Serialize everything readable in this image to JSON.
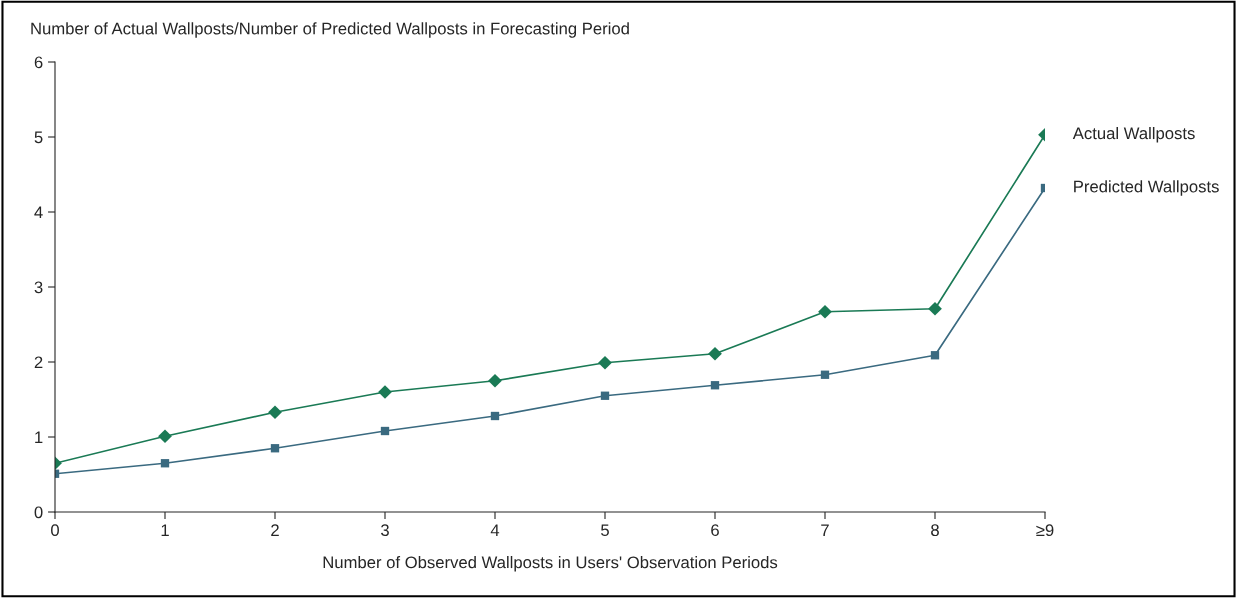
{
  "chart_data": {
    "type": "line",
    "ylabel": "Number of Actual Wallposts/Number of Predicted Wallposts in Forecasting Period",
    "xlabel": "Number of Observed Wallposts in Users' Observation Periods",
    "categories": [
      "0",
      "1",
      "2",
      "3",
      "4",
      "5",
      "6",
      "7",
      "8",
      "≥9"
    ],
    "series": [
      {
        "name": "Actual Wallposts",
        "color": "#1a7a55",
        "marker": "diamond",
        "values": [
          0.65,
          1.01,
          1.33,
          1.6,
          1.75,
          1.99,
          2.11,
          2.67,
          2.71,
          5.03
        ]
      },
      {
        "name": "Predicted Wallposts",
        "color": "#3a6a80",
        "marker": "square",
        "values": [
          0.51,
          0.65,
          0.85,
          1.08,
          1.28,
          1.55,
          1.69,
          1.83,
          2.09,
          4.32
        ]
      }
    ],
    "ylim": [
      0,
      6
    ],
    "yticks": [
      0,
      1,
      2,
      3,
      4,
      5,
      6
    ],
    "grid": false,
    "legend": false,
    "line_style": "solid"
  }
}
